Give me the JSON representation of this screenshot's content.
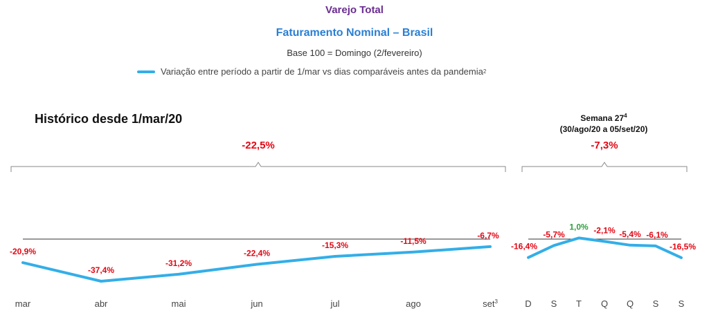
{
  "header": {
    "title": "Varejo Total",
    "subtitle": "Faturamento Nominal – Brasil",
    "base": "Base 100 = Domingo (2/fevereiro)",
    "legend": "Variação entre período a partir de 1/mar vs dias comparáveis antes da pandemia",
    "legend_sup": "2"
  },
  "historico": {
    "title": "Histórico desde 1/mar/20",
    "summary": "-22,5%"
  },
  "semana": {
    "title": "Semana 27",
    "title_sup": "4",
    "range": "(30/ago/20 a 05/set/20)",
    "summary": "-7,3%"
  },
  "colors": {
    "line": "#33aee8",
    "negative": "#e30613",
    "positive": "#2e9e3f",
    "baseline": "#333333"
  },
  "chart_data": [
    {
      "type": "line",
      "title": "Histórico desde 1/mar/20",
      "categories": [
        "mar",
        "abr",
        "mai",
        "jun",
        "jul",
        "ago",
        "set"
      ],
      "category_sup": [
        "",
        "",
        "",
        "",
        "",
        "",
        "3"
      ],
      "values": [
        -20.9,
        -37.4,
        -31.2,
        -22.4,
        -15.3,
        -11.5,
        -6.7
      ],
      "labels": [
        "-20,9%",
        "-37,4%",
        "-31,2%",
        "-22,4%",
        "-15,3%",
        "-11,5%",
        "-6,7%"
      ],
      "baseline": 0
    },
    {
      "type": "line",
      "title": "Semana 27",
      "categories": [
        "D",
        "S",
        "T",
        "Q",
        "Q",
        "S",
        "S"
      ],
      "values": [
        -16.4,
        -5.7,
        1.0,
        -2.1,
        -5.4,
        -6.1,
        -16.5
      ],
      "labels": [
        "-16,4%",
        "-5,7%",
        "1,0%",
        "-2,1%",
        "-5,4%",
        "-6,1%",
        "-16,5%"
      ],
      "baseline": 0
    }
  ]
}
